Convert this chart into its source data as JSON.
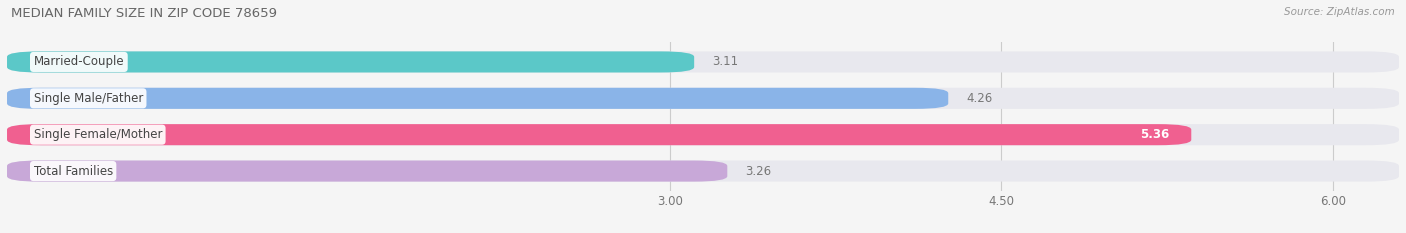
{
  "title": "MEDIAN FAMILY SIZE IN ZIP CODE 78659",
  "source": "Source: ZipAtlas.com",
  "categories": [
    "Married-Couple",
    "Single Male/Father",
    "Single Female/Mother",
    "Total Families"
  ],
  "values": [
    3.11,
    4.26,
    5.36,
    3.26
  ],
  "bar_colors": [
    "#5bc8c8",
    "#8ab4e8",
    "#f06090",
    "#c8a8d8"
  ],
  "bar_background": "#e8e8ee",
  "xlim_min": 0.0,
  "xlim_max": 6.3,
  "xticks": [
    3.0,
    4.5,
    6.0
  ],
  "xtick_labels": [
    "3.00",
    "4.50",
    "6.00"
  ],
  "value_label_color_inside": "#ffffff",
  "bg_color": "#f5f5f5",
  "bar_height": 0.58,
  "label_fontsize": 8.5,
  "value_fontsize": 8.5,
  "title_fontsize": 9.5,
  "source_fontsize": 7.5,
  "grid_color": "#cccccc"
}
